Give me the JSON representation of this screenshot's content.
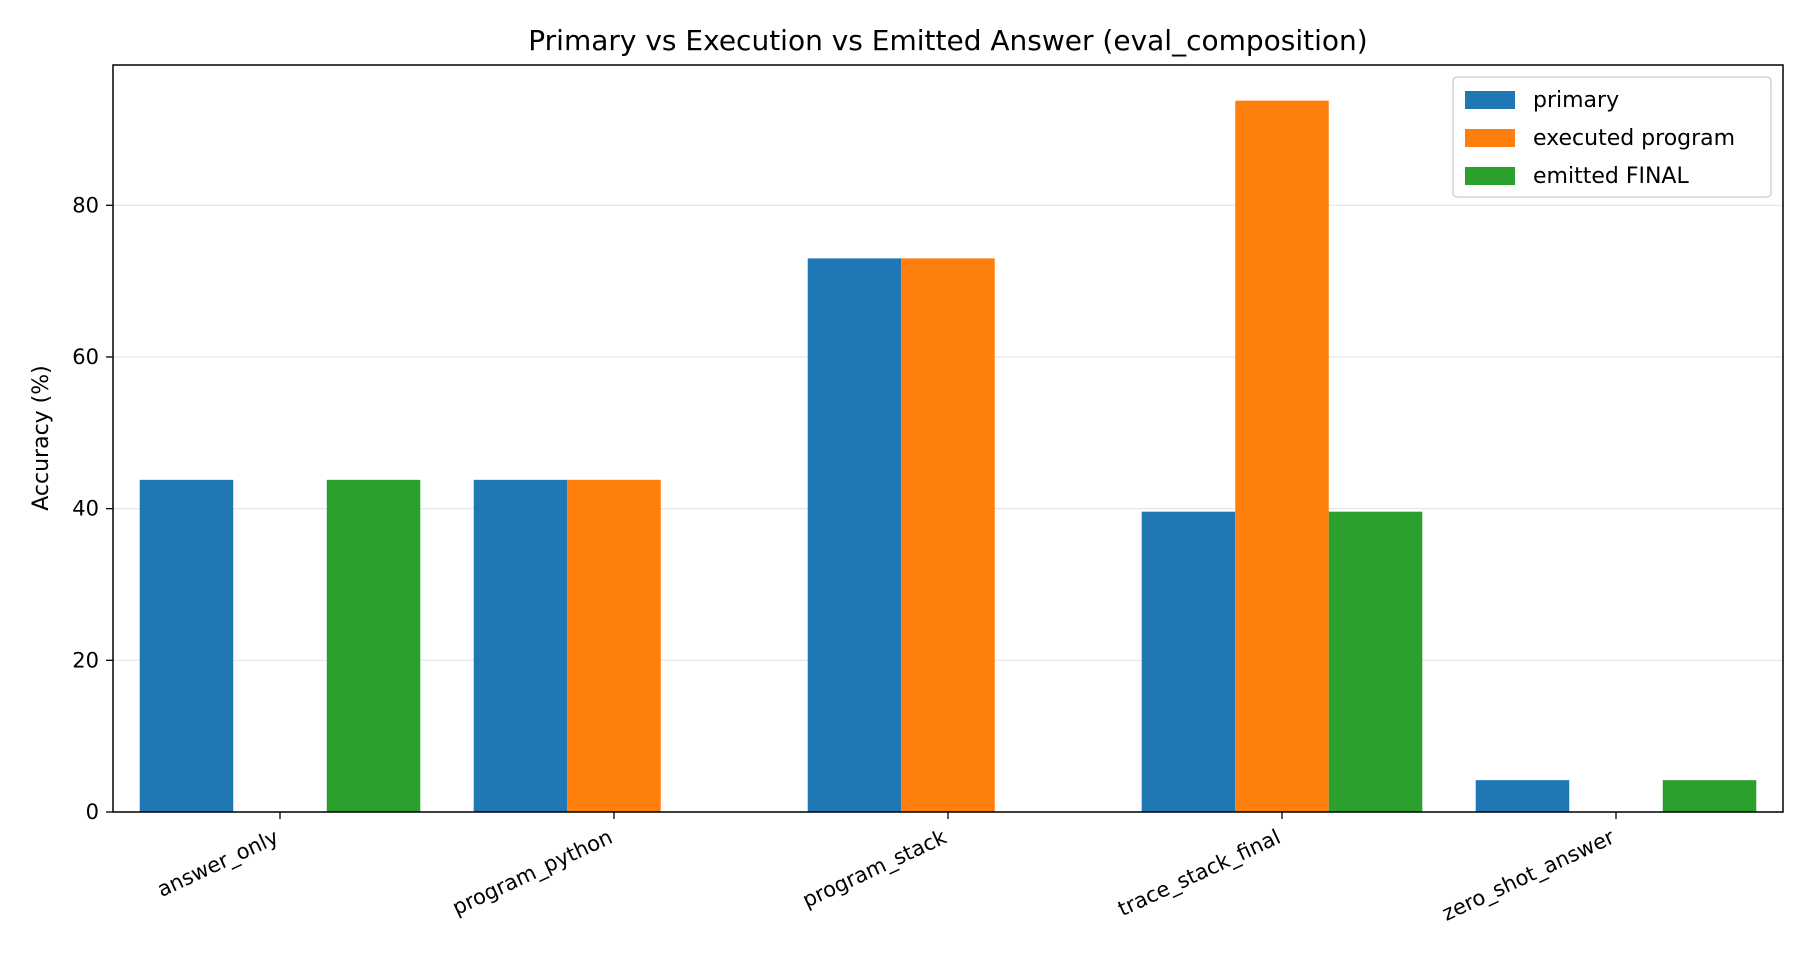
{
  "chart_data": {
    "type": "bar",
    "title": "Primary vs Execution vs Emitted Answer (eval_composition)",
    "xlabel": "",
    "ylabel": "Accuracy (%)",
    "ylim": [
      0,
      98.5
    ],
    "yticks": [
      0,
      20,
      40,
      60,
      80
    ],
    "grid": "y",
    "legend_position": "top-right",
    "categories": [
      "answer_only",
      "program_python",
      "program_stack",
      "trace_stack_final",
      "zero_shot_answer"
    ],
    "series": [
      {
        "name": "primary",
        "color": "#1f77b4",
        "values": [
          43.8,
          43.8,
          73.0,
          39.6,
          4.2
        ]
      },
      {
        "name": "executed program",
        "color": "#ff7f0e",
        "values": [
          null,
          43.8,
          73.0,
          93.8,
          null
        ]
      },
      {
        "name": "emitted FINAL",
        "color": "#2ca02c",
        "values": [
          43.8,
          null,
          null,
          39.6,
          4.2
        ]
      }
    ]
  }
}
